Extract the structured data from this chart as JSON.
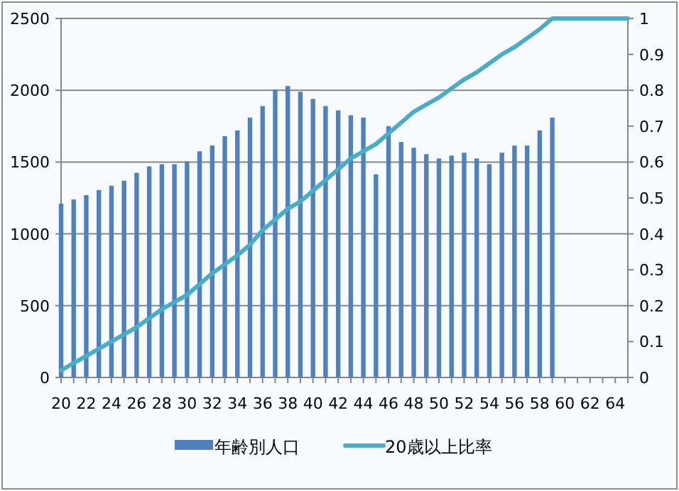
{
  "chart_data": {
    "type": "bar",
    "categories": [
      "20",
      null,
      "22",
      null,
      "24",
      null,
      "26",
      null,
      "28",
      null,
      "30",
      null,
      "32",
      null,
      "34",
      null,
      "36",
      null,
      "38",
      null,
      "40",
      null,
      "42",
      null,
      "44",
      null,
      "46",
      null,
      "48",
      null,
      "50",
      null,
      "52",
      null,
      "54",
      null,
      "56",
      null,
      "58",
      null,
      "60",
      null,
      "62",
      null,
      "64",
      null
    ],
    "series": [
      {
        "name": "年齢別人口",
        "color": "#4f81bd",
        "values": [
          1210,
          1240,
          1270,
          1305,
          1335,
          1370,
          1425,
          1470,
          1485,
          1485,
          1505,
          1575,
          1615,
          1680,
          1720,
          1810,
          1890,
          2005,
          2030,
          1990,
          1940,
          1890,
          1860,
          1825,
          1810,
          1415,
          1750,
          1640,
          1600,
          1555,
          1525,
          1545,
          1565,
          1525,
          1485,
          1565,
          1615,
          1615,
          1720,
          1810,
          null,
          null,
          null,
          null,
          null,
          null
        ]
      },
      {
        "name": "20歳以上比率",
        "type": "line",
        "axis": "y2",
        "color": "#4bacc6",
        "values": [
          0.02,
          0.04,
          0.06,
          0.08,
          0.1,
          0.12,
          0.14,
          0.165,
          0.19,
          0.21,
          0.23,
          0.26,
          0.29,
          0.315,
          0.34,
          0.37,
          0.41,
          0.44,
          0.47,
          0.49,
          0.52,
          0.55,
          0.58,
          0.61,
          0.63,
          0.65,
          0.68,
          0.71,
          0.74,
          0.76,
          0.78,
          0.805,
          0.83,
          0.85,
          0.875,
          0.9,
          0.92,
          0.945,
          0.97,
          1,
          1,
          1,
          1,
          1,
          1,
          1
        ]
      }
    ],
    "ylim": [
      0,
      2500
    ],
    "yticks": [
      0,
      500,
      1000,
      1500,
      2000,
      2500
    ],
    "y2lim": [
      0,
      1
    ],
    "y2ticks": [
      0,
      0.1,
      0.2,
      0.3,
      0.4,
      0.5,
      0.6,
      0.7,
      0.8,
      0.9,
      1
    ],
    "grid": "y",
    "legend": "bottom"
  }
}
